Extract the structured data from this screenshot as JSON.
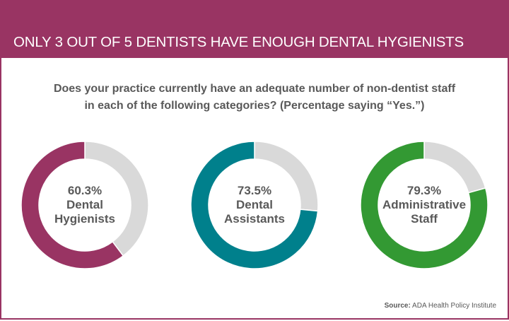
{
  "header": {
    "title": "ONLY 3 OUT OF 5 DENTISTS HAVE ENOUGH DENTAL HYGIENISTS"
  },
  "subtitle": {
    "line1": "Does your practice currently have an adequate number of non-dentist staff",
    "line2": "in each of the following categories? (Percentage saying “Yes.”)"
  },
  "chart_data": [
    {
      "type": "pie",
      "subtype": "donut",
      "value": 60.3,
      "value_label": "60.3%",
      "label_lines": [
        "Dental",
        "Hygienists"
      ],
      "color": "#993463",
      "remainder_color": "#d9d9d9"
    },
    {
      "type": "pie",
      "subtype": "donut",
      "value": 73.5,
      "value_label": "73.5%",
      "label_lines": [
        "Dental",
        "Assistants"
      ],
      "color": "#00808c",
      "remainder_color": "#d9d9d9"
    },
    {
      "type": "pie",
      "subtype": "donut",
      "value": 79.3,
      "value_label": "79.3%",
      "label_lines": [
        "Administrative",
        "Staff"
      ],
      "color": "#339933",
      "remainder_color": "#d9d9d9"
    }
  ],
  "source": {
    "label": "Source:",
    "text": " ADA Health Policy Institute"
  }
}
